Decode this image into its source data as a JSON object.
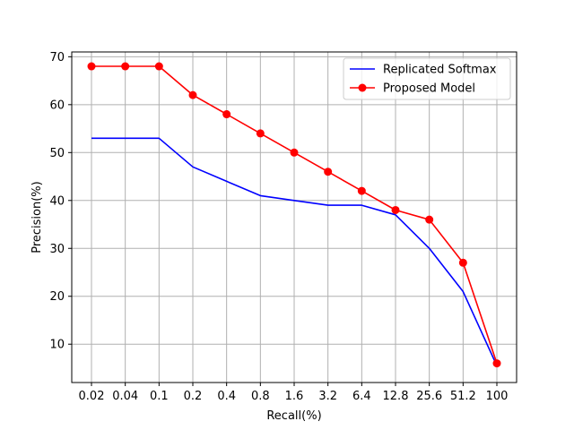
{
  "chart_data": {
    "type": "line",
    "categories": [
      "0.02",
      "0.04",
      "0.1",
      "0.2",
      "0.4",
      "0.8",
      "1.6",
      "3.2",
      "6.4",
      "12.8",
      "25.6",
      "51.2",
      "100"
    ],
    "xlabel": "Recall(%)",
    "ylabel": "Precision(%)",
    "yticks": [
      10,
      20,
      30,
      40,
      50,
      60,
      70
    ],
    "ylim": [
      2,
      71
    ],
    "grid": true,
    "legend_position": "top-right",
    "series": [
      {
        "name": "Replicated Softmax",
        "color": "#0000ff",
        "marker": "none",
        "values": [
          53,
          53,
          53,
          47,
          44,
          41,
          40,
          39,
          39,
          37,
          30,
          21,
          5.5
        ]
      },
      {
        "name": "Proposed Model",
        "color": "#ff0000",
        "marker": "circle",
        "values": [
          68,
          68,
          68,
          62,
          58,
          54,
          50,
          46,
          42,
          38,
          36,
          27,
          6
        ]
      }
    ]
  }
}
